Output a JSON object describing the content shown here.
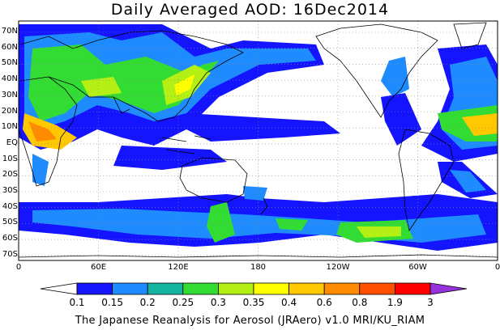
{
  "title": "Daily Averaged AOD: 16Dec2014",
  "credit": "The Japanese Reanalysis for Aerosol (JRAero) v1.0 MRI/KU_RIAM",
  "lat_labels": [
    "70N",
    "60N",
    "50N",
    "40N",
    "30N",
    "20N",
    "10N",
    "EQ",
    "10S",
    "20S",
    "30S",
    "40S",
    "50S",
    "60S",
    "70S"
  ],
  "lon_labels": [
    "0",
    "60E",
    "120E",
    "180",
    "120W",
    "60W",
    "0"
  ],
  "colorbar": {
    "labels": [
      "0.1",
      "0.15",
      "0.2",
      "0.25",
      "0.3",
      "0.35",
      "0.4",
      "0.6",
      "0.8",
      "1.9",
      "3"
    ],
    "colors": [
      "#1414ff",
      "#1e8cff",
      "#14b4a0",
      "#32dc32",
      "#b4f014",
      "#ffff00",
      "#ffc800",
      "#ff8c00",
      "#ff5000",
      "#ff0000",
      "#9632dc"
    ]
  },
  "map": {
    "lat_range": [
      -75,
      75
    ],
    "lon_range": [
      0,
      360
    ]
  }
}
